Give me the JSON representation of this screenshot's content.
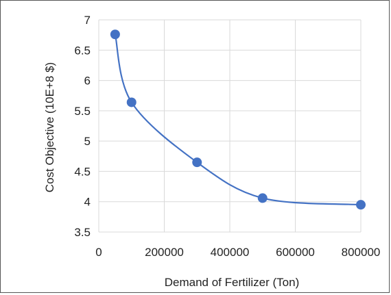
{
  "chart_data": {
    "type": "scatter",
    "title": "",
    "xlabel": "Demand of Fertilizer (Ton)",
    "ylabel": "Cost Objective (10E+8 $)",
    "xlim": [
      0,
      800000
    ],
    "ylim": [
      3.5,
      7
    ],
    "xticks": [
      0,
      200000,
      400000,
      600000,
      800000
    ],
    "xtick_labels": [
      "0",
      "200000",
      "400000",
      "600000",
      "800000"
    ],
    "yticks": [
      3.5,
      4,
      4.5,
      5,
      5.5,
      6,
      6.5,
      7
    ],
    "ytick_labels": [
      "3.5",
      "4",
      "4.5",
      "5",
      "5.5",
      "6",
      "6.5",
      "7"
    ],
    "grid": true,
    "smooth_line": true,
    "series": [
      {
        "x": [
          50000,
          100000,
          300000,
          500000,
          800000
        ],
        "y": [
          6.76,
          5.64,
          4.65,
          4.06,
          3.95
        ],
        "color": "#4472c4"
      }
    ]
  }
}
